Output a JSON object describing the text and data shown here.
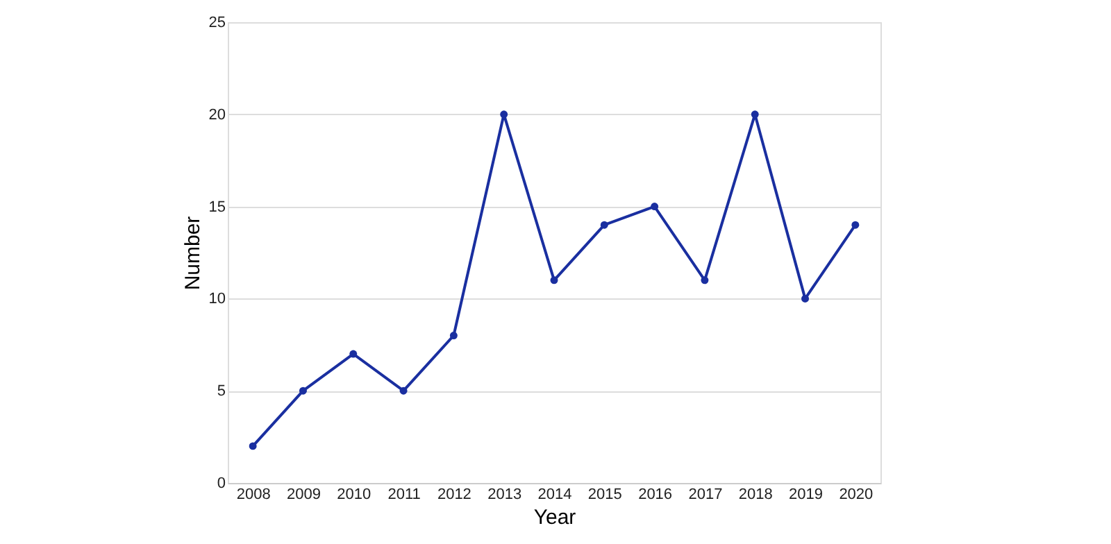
{
  "chart_data": {
    "type": "line",
    "xlabel": "Year",
    "ylabel": "Number",
    "categories": [
      "2008",
      "2009",
      "2010",
      "2011",
      "2012",
      "2013",
      "2014",
      "2015",
      "2016",
      "2017",
      "2018",
      "2019",
      "2020"
    ],
    "series": [
      {
        "color": "#1a2fa0",
        "values": [
          2,
          5,
          7,
          5,
          8,
          20,
          11,
          14,
          15,
          11,
          20,
          10,
          14
        ]
      }
    ],
    "ylim": [
      0,
      25
    ],
    "yticks": [
      0,
      5,
      10,
      15,
      20,
      25
    ],
    "grid": "y",
    "legend": false,
    "marker": "circle",
    "line_style": "solid"
  }
}
